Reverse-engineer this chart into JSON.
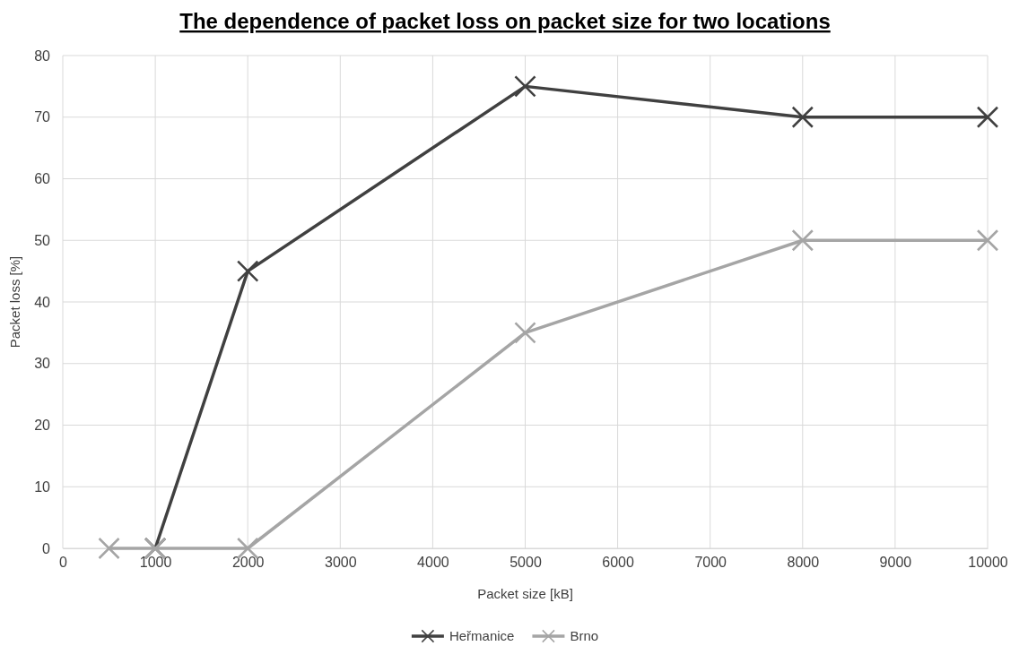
{
  "chart_data": {
    "type": "line",
    "title": "The dependence of packet loss on packet size for two locations",
    "xlabel": "Packet size [kB]",
    "ylabel": "Packet loss [%]",
    "xlim": [
      0,
      10000
    ],
    "xticks": [
      0,
      1000,
      2000,
      3000,
      4000,
      5000,
      6000,
      7000,
      8000,
      9000,
      10000
    ],
    "ylim": [
      0,
      80
    ],
    "yticks": [
      0,
      10,
      20,
      30,
      40,
      50,
      60,
      70,
      80
    ],
    "grid": true,
    "legend": "bottom",
    "marker": "cross",
    "line_style": "solid",
    "series": [
      {
        "name": "Heřmanice",
        "color": "#404040",
        "x": [
          1000,
          2000,
          5000,
          8000,
          10000
        ],
        "values": [
          0,
          45,
          75,
          70,
          70
        ]
      },
      {
        "name": "Brno",
        "color": "#a5a5a5",
        "x": [
          500,
          1000,
          2000,
          5000,
          8000,
          10000
        ],
        "values": [
          0,
          0,
          0,
          35,
          50,
          50
        ]
      }
    ]
  }
}
